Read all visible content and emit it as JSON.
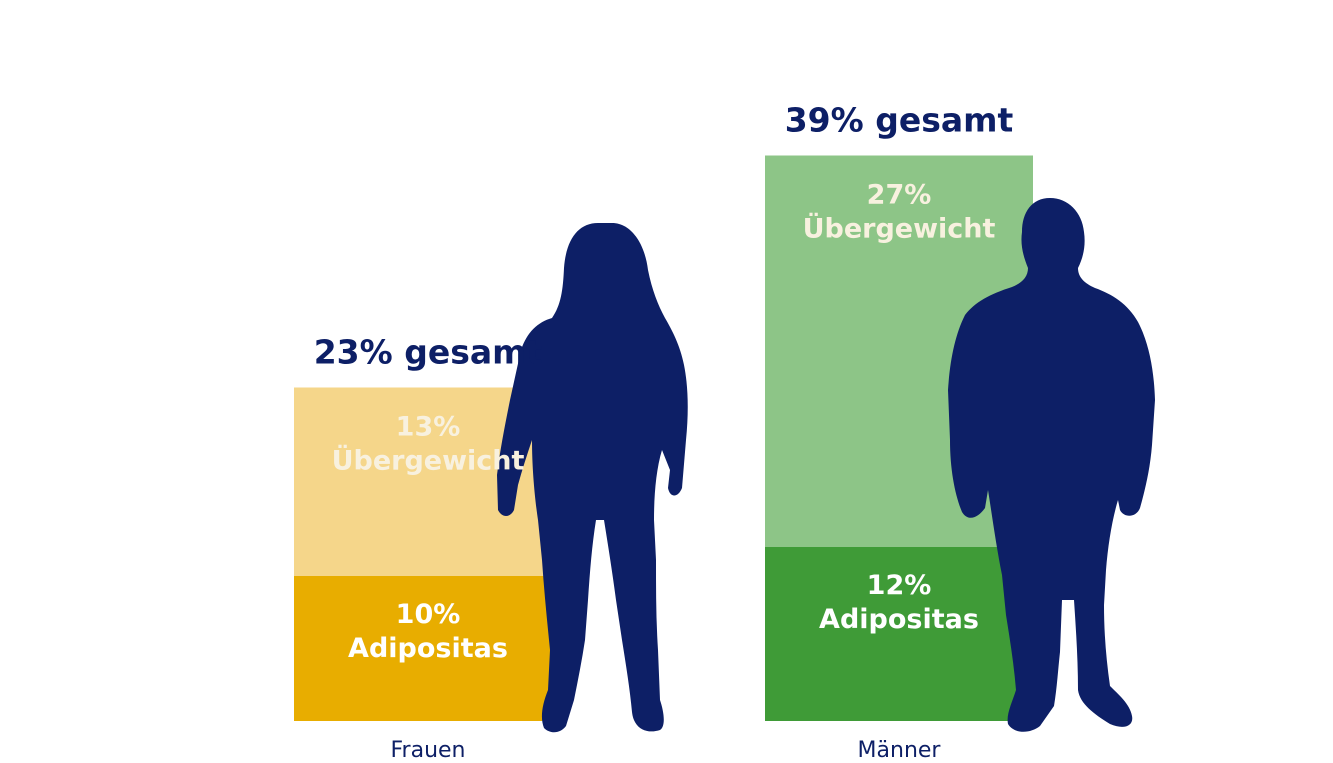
{
  "chart_data": {
    "type": "bar",
    "stacked": true,
    "categories": [
      "Frauen",
      "Männer"
    ],
    "series": [
      {
        "key": "adipositas",
        "values": [
          10,
          12
        ]
      },
      {
        "key": "uebergewicht",
        "values": [
          13,
          27
        ]
      }
    ],
    "totals": [
      23,
      39
    ],
    "total_labels": [
      "23% gesamt",
      "39% gesamt"
    ],
    "segment_labels": {
      "adipositas": [
        [
          "10%",
          "Adipositas"
        ],
        [
          "12%",
          "Adipositas"
        ]
      ],
      "uebergewicht": [
        [
          "13%",
          "Übergewicht"
        ],
        [
          "27%",
          "Übergewicht"
        ]
      ]
    },
    "ylim": [
      0,
      39
    ],
    "grid": false,
    "colors": {
      "frauen_adipositas": "#e8ad00",
      "frauen_uebergewicht": "#f5d68a",
      "maenner_adipositas": "#3f9b37",
      "maenner_uebergewicht": "#8dc587",
      "silhouette": "#0d1f66",
      "total_text": "#0d1f66",
      "category_text": "#0d1f66",
      "segment_text_light": "#ffffff",
      "segment_text_pale": "#f8f1df"
    },
    "icons": [
      "woman-silhouette-icon",
      "man-silhouette-icon"
    ]
  }
}
